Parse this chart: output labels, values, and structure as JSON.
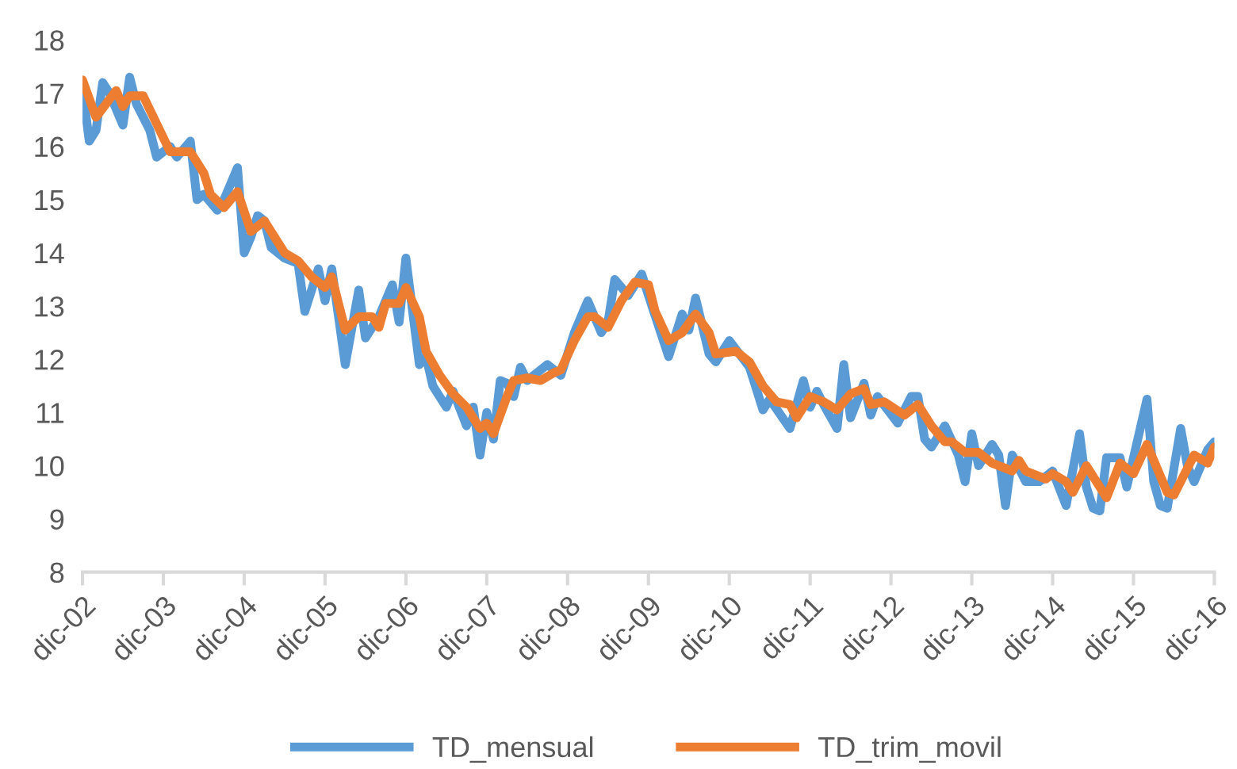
{
  "chart_data": {
    "type": "line",
    "ylim": [
      8,
      18
    ],
    "yticks": [
      8,
      9,
      10,
      11,
      12,
      13,
      14,
      15,
      16,
      17,
      18
    ],
    "xlim": [
      "2002-12",
      "2016-12"
    ],
    "xticks": [
      {
        "value": "2002-12",
        "label": "dic-02"
      },
      {
        "value": "2003-12",
        "label": "dic-03"
      },
      {
        "value": "2004-12",
        "label": "dic-04"
      },
      {
        "value": "2005-12",
        "label": "dic-05"
      },
      {
        "value": "2006-12",
        "label": "dic-06"
      },
      {
        "value": "2007-12",
        "label": "dic-07"
      },
      {
        "value": "2008-12",
        "label": "dic-08"
      },
      {
        "value": "2009-12",
        "label": "dic-09"
      },
      {
        "value": "2010-12",
        "label": "dic-10"
      },
      {
        "value": "2011-12",
        "label": "dic-11"
      },
      {
        "value": "2012-12",
        "label": "dic-12"
      },
      {
        "value": "2013-12",
        "label": "dic-13"
      },
      {
        "value": "2014-12",
        "label": "dic-14"
      },
      {
        "value": "2015-12",
        "label": "dic-15"
      },
      {
        "value": "2016-12",
        "label": "dic-16"
      }
    ],
    "grid": false,
    "legend": "bottom",
    "marker": "none",
    "line_style": "solid",
    "series": [
      {
        "name": "TD_mensual",
        "color": "#5b9bd5",
        "x": [
          "2002-12",
          "2003-01",
          "2003-02",
          "2003-03",
          "2003-04",
          "2003-06",
          "2003-07",
          "2003-08",
          "2003-10",
          "2003-11",
          "2004-01",
          "2004-02",
          "2004-04",
          "2004-05",
          "2004-06",
          "2004-08",
          "2004-09",
          "2004-11",
          "2004-12",
          "2005-01",
          "2005-02",
          "2005-03",
          "2005-04",
          "2005-06",
          "2005-08",
          "2005-09",
          "2005-11",
          "2005-12",
          "2006-01",
          "2006-03",
          "2006-05",
          "2006-06",
          "2006-08",
          "2006-10",
          "2006-11",
          "2006-12",
          "2007-02",
          "2007-03",
          "2007-04",
          "2007-06",
          "2007-07",
          "2007-09",
          "2007-10",
          "2007-11",
          "2007-12",
          "2008-01",
          "2008-02",
          "2008-03",
          "2008-04",
          "2008-05",
          "2008-06",
          "2008-07",
          "2008-09",
          "2008-11",
          "2009-01",
          "2009-03",
          "2009-05",
          "2009-06",
          "2009-07",
          "2009-09",
          "2009-11",
          "2009-12",
          "2010-03",
          "2010-05",
          "2010-06",
          "2010-07",
          "2010-09",
          "2010-10",
          "2010-12",
          "2011-03",
          "2011-05",
          "2011-06",
          "2011-09",
          "2011-11",
          "2011-12",
          "2012-01",
          "2012-02",
          "2012-04",
          "2012-05",
          "2012-06",
          "2012-08",
          "2012-09",
          "2012-10",
          "2013-01",
          "2013-03",
          "2013-04",
          "2013-05",
          "2013-06",
          "2013-08",
          "2013-10",
          "2013-11",
          "2013-12",
          "2014-01",
          "2014-03",
          "2014-04",
          "2014-05",
          "2014-06",
          "2014-08",
          "2014-10",
          "2014-12",
          "2015-02",
          "2015-04",
          "2015-05",
          "2015-06",
          "2015-07",
          "2015-08",
          "2015-10",
          "2015-11",
          "2016-02",
          "2016-03",
          "2016-04",
          "2016-05",
          "2016-07",
          "2016-08",
          "2016-09",
          "2016-11",
          "2016-12"
        ],
        "values": [
          17.1,
          16.1,
          16.3,
          17.2,
          17.0,
          16.4,
          17.3,
          16.8,
          16.3,
          15.8,
          16.0,
          15.8,
          16.1,
          15.0,
          15.1,
          14.8,
          15.0,
          15.6,
          14.0,
          14.3,
          14.7,
          14.6,
          14.1,
          13.9,
          13.8,
          12.9,
          13.7,
          13.1,
          13.7,
          11.9,
          13.3,
          12.4,
          12.8,
          13.4,
          12.7,
          13.9,
          11.9,
          12.05,
          11.5,
          11.1,
          11.4,
          10.75,
          11.1,
          10.2,
          11.0,
          10.5,
          11.6,
          11.55,
          11.3,
          11.85,
          11.6,
          11.7,
          11.9,
          11.7,
          12.5,
          13.1,
          12.5,
          12.7,
          13.5,
          13.2,
          13.6,
          13.2,
          12.05,
          12.85,
          12.55,
          13.15,
          12.1,
          11.95,
          12.35,
          11.85,
          11.05,
          11.25,
          10.7,
          11.6,
          11.1,
          11.4,
          11.15,
          10.7,
          11.9,
          10.9,
          11.55,
          10.95,
          11.3,
          10.8,
          11.3,
          11.3,
          10.5,
          10.35,
          10.75,
          10.2,
          9.7,
          10.6,
          10.0,
          10.4,
          10.2,
          9.25,
          10.2,
          9.7,
          9.7,
          9.9,
          9.25,
          10.6,
          9.6,
          9.2,
          9.15,
          10.15,
          10.15,
          9.6,
          11.25,
          9.7,
          9.25,
          9.2,
          10.7,
          10.0,
          9.7,
          10.3,
          10.45
        ]
      },
      {
        "name": "TD_trim_movil",
        "color": "#ed7d31",
        "x": [
          "2002-12",
          "2003-02",
          "2003-05",
          "2003-06",
          "2003-07",
          "2003-09",
          "2004-01",
          "2004-04",
          "2004-06",
          "2004-07",
          "2004-09",
          "2004-11",
          "2005-01",
          "2005-03",
          "2005-06",
          "2005-08",
          "2005-10",
          "2005-12",
          "2006-01",
          "2006-03",
          "2006-05",
          "2006-07",
          "2006-08",
          "2006-09",
          "2006-11",
          "2006-12",
          "2007-02",
          "2007-03",
          "2007-05",
          "2007-07",
          "2007-09",
          "2007-11",
          "2007-12",
          "2008-01",
          "2008-03",
          "2008-04",
          "2008-06",
          "2008-08",
          "2008-10",
          "2008-11",
          "2009-01",
          "2009-03",
          "2009-04",
          "2009-06",
          "2009-08",
          "2009-10",
          "2009-12",
          "2010-01",
          "2010-03",
          "2010-05",
          "2010-07",
          "2010-09",
          "2010-10",
          "2011-01",
          "2011-03",
          "2011-05",
          "2011-07",
          "2011-09",
          "2011-10",
          "2011-12",
          "2012-02",
          "2012-04",
          "2012-06",
          "2012-08",
          "2012-09",
          "2012-11",
          "2013-02",
          "2013-04",
          "2013-06",
          "2013-08",
          "2013-09",
          "2013-11",
          "2014-01",
          "2014-03",
          "2014-06",
          "2014-07",
          "2014-08",
          "2014-11",
          "2014-12",
          "2015-02",
          "2015-03",
          "2015-05",
          "2015-08",
          "2015-10",
          "2015-12",
          "2016-02",
          "2016-03",
          "2016-05",
          "2016-06",
          "2016-09",
          "2016-11",
          "2016-12"
        ],
        "values": [
          17.25,
          16.55,
          17.05,
          16.75,
          16.95,
          16.95,
          15.9,
          15.9,
          15.5,
          15.1,
          14.85,
          15.15,
          14.4,
          14.6,
          14.0,
          13.85,
          13.55,
          13.35,
          13.55,
          12.55,
          12.8,
          12.8,
          12.6,
          13.05,
          13.05,
          13.35,
          12.8,
          12.15,
          11.7,
          11.35,
          11.1,
          10.7,
          10.8,
          10.6,
          11.3,
          11.6,
          11.65,
          11.6,
          11.75,
          11.8,
          12.35,
          12.8,
          12.8,
          12.6,
          13.1,
          13.45,
          13.4,
          12.9,
          12.35,
          12.5,
          12.85,
          12.5,
          12.1,
          12.15,
          11.95,
          11.5,
          11.2,
          11.15,
          10.9,
          11.3,
          11.2,
          11.05,
          11.35,
          11.45,
          11.15,
          11.2,
          10.95,
          11.15,
          10.75,
          10.45,
          10.45,
          10.25,
          10.25,
          10.05,
          9.9,
          10.1,
          9.9,
          9.75,
          9.85,
          9.7,
          9.5,
          10.0,
          9.4,
          10.05,
          9.85,
          10.4,
          10.1,
          9.5,
          9.45,
          10.2,
          10.05,
          10.35
        ]
      }
    ]
  }
}
